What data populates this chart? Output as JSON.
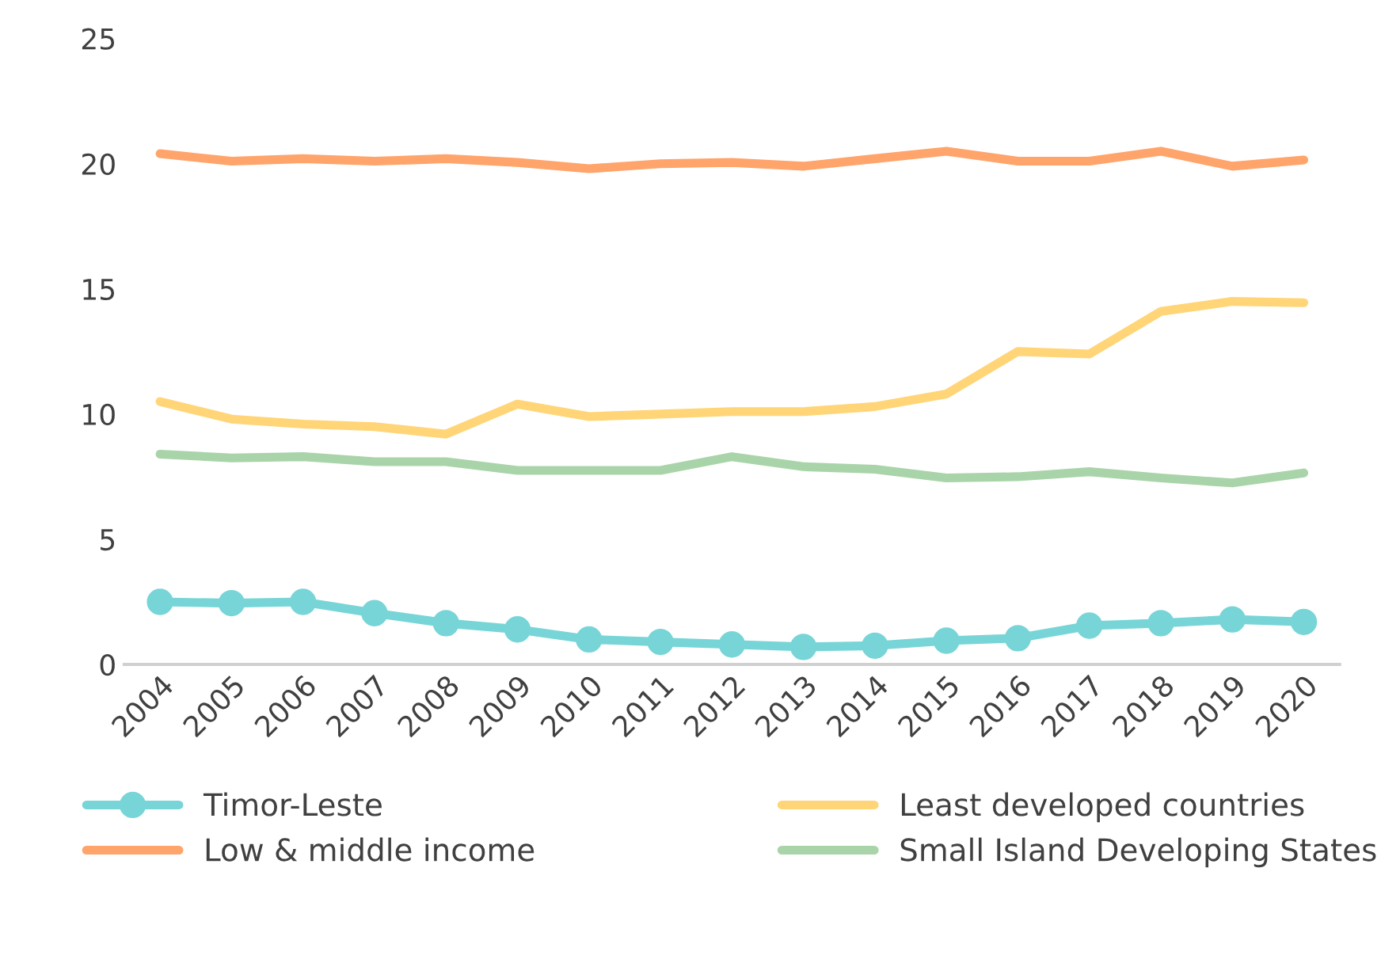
{
  "chart_data": {
    "type": "line",
    "categories": [
      "2004",
      "2005",
      "2006",
      "2007",
      "2008",
      "2009",
      "2010",
      "2011",
      "2012",
      "2013",
      "2014",
      "2015",
      "2016",
      "2017",
      "2018",
      "2019",
      "2020"
    ],
    "ylim": [
      0,
      25
    ],
    "yticks": [
      0,
      5,
      10,
      15,
      20,
      25
    ],
    "grid": false,
    "legend": "bottom",
    "series": [
      {
        "name": "Timor-Leste",
        "color": "#78d5d7",
        "marker": "circle",
        "values": [
          2.5,
          2.45,
          2.5,
          2.05,
          1.65,
          1.4,
          1.0,
          0.9,
          0.8,
          0.7,
          0.75,
          0.95,
          1.05,
          1.55,
          1.65,
          1.8,
          1.7
        ]
      },
      {
        "name": "Low & middle income",
        "color": "#ffa46b",
        "marker": "none",
        "values": [
          20.4,
          20.1,
          20.2,
          20.1,
          20.2,
          20.05,
          19.8,
          20.0,
          20.05,
          19.9,
          20.2,
          20.5,
          20.1,
          20.1,
          20.5,
          19.9,
          20.15
        ]
      },
      {
        "name": "Least developed countries",
        "color": "#ffd577",
        "marker": "none",
        "values": [
          10.5,
          9.8,
          9.6,
          9.5,
          9.2,
          10.4,
          9.9,
          10.0,
          10.1,
          10.1,
          10.3,
          10.8,
          12.5,
          12.4,
          14.1,
          14.5,
          14.45
        ]
      },
      {
        "name": "Small Island Developing States",
        "color": "#a9d4a9",
        "marker": "none",
        "values": [
          8.4,
          8.25,
          8.3,
          8.1,
          8.1,
          7.75,
          7.75,
          7.75,
          8.3,
          7.9,
          7.8,
          7.45,
          7.5,
          7.7,
          7.45,
          7.25,
          7.65
        ]
      }
    ]
  }
}
